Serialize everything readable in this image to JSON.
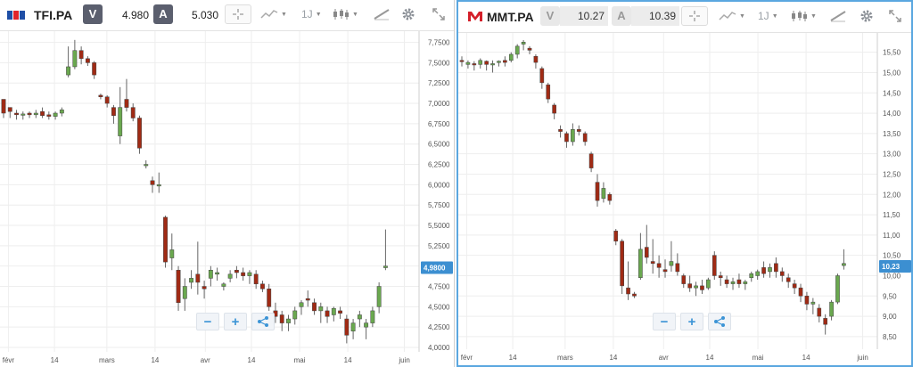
{
  "colors": {
    "up": "#6aa84f",
    "down": "#a02a14",
    "current_label": "#3c8fd1",
    "grid": "#eeeeee",
    "active_border": "#5aa7e0"
  },
  "panels": [
    {
      "symbol": "TFI.PA",
      "logo_icon": "tf1-logo-icon",
      "bid_label": "V",
      "bid": "4.980",
      "ask_label": "A",
      "ask": "5.030",
      "timeframe": "1J",
      "current_label": "4,9800",
      "y_ticks": [
        "7,7500",
        "7,5000",
        "7,2500",
        "7,0000",
        "6,7500",
        "6,5000",
        "6,2500",
        "6,0000",
        "5,7500",
        "5,5000",
        "5,2500",
        "5,0000",
        "4,7500",
        "4,5000",
        "4,2500",
        "4,0000"
      ],
      "x_ticks": [
        "févr",
        "14",
        "mars",
        "14",
        "avr",
        "14",
        "mai",
        "14",
        "juin"
      ],
      "zoom": {
        "minus": "−",
        "plus": "+"
      }
    },
    {
      "symbol": "MMT.PA",
      "logo_icon": "m6-logo-icon",
      "bid_label": "V",
      "bid": "10.27",
      "ask_label": "A",
      "ask": "10.39",
      "timeframe": "1J",
      "current_label": "10,23",
      "y_ticks": [
        "15,50",
        "15,00",
        "14,50",
        "14,00",
        "13,50",
        "13,00",
        "12,50",
        "12,00",
        "11,50",
        "11,00",
        "10,50",
        "10,00",
        "9,50",
        "9,00",
        "8,50"
      ],
      "x_ticks": [
        "févr",
        "14",
        "mars",
        "14",
        "avr",
        "14",
        "mai",
        "14",
        "juin"
      ],
      "zoom": {
        "minus": "−",
        "plus": "+"
      }
    }
  ],
  "chart_data": [
    {
      "type": "candlestick",
      "symbol": "TFI.PA",
      "ylim": [
        4.0,
        7.8
      ],
      "candles": [
        [
          7.05,
          7.0,
          6.85,
          6.82,
          6.88
        ],
        [
          6.95,
          6.95,
          6.85,
          6.82,
          6.9
        ],
        [
          6.88,
          6.92,
          6.82,
          6.8,
          6.86
        ],
        [
          6.86,
          6.9,
          6.82,
          6.8,
          6.87
        ],
        [
          6.88,
          6.9,
          6.84,
          6.82,
          6.86
        ],
        [
          6.86,
          6.92,
          6.84,
          6.82,
          6.88
        ],
        [
          6.9,
          6.95,
          6.84,
          6.82,
          6.85
        ],
        [
          6.86,
          6.9,
          6.82,
          6.8,
          6.84
        ],
        [
          6.84,
          6.9,
          6.82,
          6.8,
          6.88
        ],
        [
          6.88,
          6.95,
          6.86,
          6.84,
          6.92
        ],
        [
          7.35,
          7.7,
          7.3,
          7.32,
          7.45
        ],
        [
          7.45,
          7.78,
          7.45,
          7.42,
          7.65
        ],
        [
          7.65,
          7.7,
          7.5,
          7.48,
          7.55
        ],
        [
          7.55,
          7.58,
          7.48,
          7.46,
          7.5
        ],
        [
          7.5,
          7.52,
          7.32,
          7.3,
          7.35
        ],
        [
          7.1,
          7.12,
          7.08,
          7.05,
          7.08
        ],
        [
          7.08,
          7.1,
          6.98,
          6.95,
          7.0
        ],
        [
          6.95,
          6.98,
          6.8,
          6.75,
          6.85
        ],
        [
          6.6,
          7.2,
          6.5,
          6.5,
          6.95
        ],
        [
          7.05,
          7.3,
          6.92,
          6.9,
          6.95
        ],
        [
          6.95,
          7.0,
          6.8,
          6.78,
          6.82
        ],
        [
          6.82,
          6.85,
          6.4,
          6.38,
          6.45
        ],
        [
          6.25,
          6.3,
          6.22,
          6.2,
          6.25
        ],
        [
          6.05,
          6.1,
          5.95,
          5.9,
          6.0
        ],
        [
          6.0,
          6.15,
          5.95,
          5.9,
          6.0
        ],
        [
          5.6,
          5.62,
          5.0,
          4.98,
          5.05
        ],
        [
          5.1,
          5.4,
          4.95,
          4.95,
          5.2
        ],
        [
          4.95,
          5.0,
          4.5,
          4.45,
          4.55
        ],
        [
          4.6,
          4.85,
          4.4,
          4.45,
          4.75
        ],
        [
          4.8,
          4.95,
          4.75,
          4.72,
          4.85
        ],
        [
          4.9,
          5.3,
          4.7,
          4.65,
          4.8
        ],
        [
          4.75,
          4.82,
          4.65,
          4.6,
          4.72
        ],
        [
          4.85,
          5.0,
          4.75,
          4.75,
          4.95
        ],
        [
          4.9,
          4.98,
          4.85,
          4.82,
          4.92
        ],
        [
          4.75,
          4.8,
          4.72,
          4.7,
          4.78
        ],
        [
          4.85,
          4.95,
          4.82,
          4.8,
          4.9
        ],
        [
          4.95,
          5.0,
          4.88,
          4.85,
          4.92
        ],
        [
          4.92,
          4.98,
          4.85,
          4.82,
          4.88
        ],
        [
          4.88,
          4.95,
          4.8,
          4.78,
          4.92
        ],
        [
          4.9,
          4.95,
          4.75,
          4.72,
          4.78
        ],
        [
          4.78,
          4.82,
          4.7,
          4.68,
          4.72
        ],
        [
          4.72,
          4.78,
          4.5,
          4.45,
          4.5
        ],
        [
          4.45,
          4.55,
          4.35,
          4.3,
          4.38
        ],
        [
          4.4,
          4.45,
          4.25,
          4.2,
          4.3
        ],
        [
          4.3,
          4.4,
          4.22,
          4.2,
          4.35
        ],
        [
          4.35,
          4.5,
          4.3,
          4.28,
          4.45
        ],
        [
          4.5,
          4.58,
          4.42,
          4.4,
          4.55
        ],
        [
          4.6,
          4.7,
          4.52,
          4.5,
          4.58
        ],
        [
          4.55,
          4.6,
          4.42,
          4.4,
          4.45
        ],
        [
          4.45,
          4.55,
          4.35,
          4.3,
          4.5
        ],
        [
          4.45,
          4.5,
          4.32,
          4.3,
          4.38
        ],
        [
          4.4,
          4.5,
          4.35,
          4.32,
          4.48
        ],
        [
          4.45,
          4.5,
          4.38,
          4.35,
          4.42
        ],
        [
          4.35,
          4.4,
          4.1,
          4.05,
          4.15
        ],
        [
          4.2,
          4.35,
          4.15,
          4.1,
          4.3
        ],
        [
          4.35,
          4.45,
          4.3,
          4.25,
          4.4
        ],
        [
          4.25,
          4.35,
          4.15,
          4.1,
          4.3
        ],
        [
          4.3,
          4.5,
          4.28,
          4.25,
          4.45
        ],
        [
          4.5,
          4.8,
          4.45,
          4.42,
          4.75
        ],
        [
          4.98,
          5.45,
          4.95,
          4.95,
          5.0
        ]
      ]
    },
    {
      "type": "candlestick",
      "symbol": "MMT.PA",
      "ylim": [
        8.3,
        15.8
      ],
      "candles": [
        [
          15.3,
          15.4,
          15.2,
          15.15,
          15.28
        ],
        [
          15.2,
          15.3,
          15.15,
          15.1,
          15.25
        ],
        [
          15.22,
          15.28,
          15.1,
          15.05,
          15.2
        ],
        [
          15.2,
          15.35,
          15.15,
          15.1,
          15.3
        ],
        [
          15.28,
          15.3,
          15.1,
          15.05,
          15.2
        ],
        [
          15.2,
          15.3,
          15.05,
          15.0,
          15.22
        ],
        [
          15.25,
          15.3,
          15.2,
          15.15,
          15.28
        ],
        [
          15.3,
          15.4,
          15.2,
          15.15,
          15.25
        ],
        [
          15.3,
          15.5,
          15.3,
          15.25,
          15.45
        ],
        [
          15.45,
          15.7,
          15.4,
          15.35,
          15.65
        ],
        [
          15.7,
          15.8,
          15.6,
          15.55,
          15.75
        ],
        [
          15.6,
          15.65,
          15.5,
          15.45,
          15.55
        ],
        [
          15.4,
          15.45,
          15.2,
          15.1,
          15.25
        ],
        [
          15.1,
          15.15,
          14.7,
          14.6,
          14.75
        ],
        [
          14.7,
          14.75,
          14.3,
          14.25,
          14.35
        ],
        [
          14.2,
          14.25,
          13.9,
          13.85,
          14.0
        ],
        [
          13.6,
          13.7,
          13.5,
          13.4,
          13.55
        ],
        [
          13.5,
          13.55,
          13.2,
          13.15,
          13.3
        ],
        [
          13.3,
          13.75,
          13.2,
          13.2,
          13.6
        ],
        [
          13.6,
          13.7,
          13.5,
          13.45,
          13.55
        ],
        [
          13.5,
          13.55,
          13.25,
          13.2,
          13.3
        ],
        [
          13.0,
          13.05,
          12.6,
          12.55,
          12.65
        ],
        [
          12.3,
          12.5,
          12.1,
          11.7,
          11.85
        ],
        [
          11.9,
          12.3,
          11.9,
          11.8,
          12.15
        ],
        [
          12.0,
          12.05,
          11.8,
          11.75,
          11.85
        ],
        [
          11.1,
          11.15,
          10.8,
          10.75,
          10.85
        ],
        [
          10.85,
          10.9,
          9.7,
          9.55,
          9.75
        ],
        [
          9.7,
          10.35,
          9.45,
          9.4,
          9.55
        ],
        [
          9.55,
          9.6,
          9.5,
          9.45,
          9.5
        ],
        [
          9.95,
          11.05,
          9.95,
          9.9,
          10.65
        ],
        [
          10.7,
          11.25,
          10.4,
          10.3,
          10.45
        ],
        [
          10.35,
          10.9,
          10.1,
          10.05,
          10.3
        ],
        [
          10.3,
          10.5,
          10.0,
          9.95,
          10.2
        ],
        [
          10.15,
          10.4,
          10.0,
          9.95,
          10.1
        ],
        [
          10.25,
          10.85,
          10.15,
          10.1,
          10.35
        ],
        [
          10.3,
          10.55,
          10.05,
          10.0,
          10.1
        ],
        [
          10.0,
          10.05,
          9.75,
          9.7,
          9.8
        ],
        [
          9.8,
          10.0,
          9.65,
          9.6,
          9.7
        ],
        [
          9.7,
          9.85,
          9.55,
          9.5,
          9.75
        ],
        [
          9.75,
          9.9,
          9.6,
          9.55,
          9.65
        ],
        [
          9.7,
          9.95,
          9.65,
          9.65,
          9.9
        ],
        [
          10.5,
          10.6,
          9.95,
          9.9,
          10.0
        ],
        [
          10.0,
          10.1,
          9.8,
          9.75,
          9.95
        ],
        [
          9.9,
          10.0,
          9.75,
          9.7,
          9.8
        ],
        [
          9.8,
          9.95,
          9.7,
          9.65,
          9.85
        ],
        [
          9.9,
          10.05,
          9.75,
          9.7,
          9.8
        ],
        [
          9.8,
          9.9,
          9.7,
          9.65,
          9.85
        ],
        [
          9.95,
          10.1,
          9.9,
          9.85,
          10.05
        ],
        [
          10.0,
          10.15,
          9.95,
          9.9,
          10.1
        ],
        [
          10.2,
          10.35,
          10.0,
          9.95,
          10.05
        ],
        [
          10.1,
          10.3,
          10.0,
          9.95,
          10.2
        ],
        [
          10.3,
          10.45,
          10.0,
          9.95,
          10.1
        ],
        [
          10.1,
          10.2,
          9.9,
          9.85,
          10.0
        ],
        [
          9.95,
          10.05,
          9.75,
          9.7,
          9.85
        ],
        [
          9.8,
          9.9,
          9.6,
          9.55,
          9.7
        ],
        [
          9.7,
          9.8,
          9.4,
          9.35,
          9.5
        ],
        [
          9.5,
          9.6,
          9.2,
          9.15,
          9.3
        ],
        [
          9.3,
          9.45,
          9.1,
          9.05,
          9.35
        ],
        [
          9.2,
          9.3,
          8.9,
          8.85,
          9.0
        ],
        [
          8.95,
          9.05,
          8.6,
          8.55,
          8.8
        ],
        [
          9.0,
          9.4,
          8.95,
          8.9,
          9.35
        ],
        [
          9.35,
          10.05,
          9.3,
          9.3,
          10.0
        ],
        [
          10.25,
          10.65,
          10.2,
          10.15,
          10.3
        ]
      ]
    }
  ]
}
